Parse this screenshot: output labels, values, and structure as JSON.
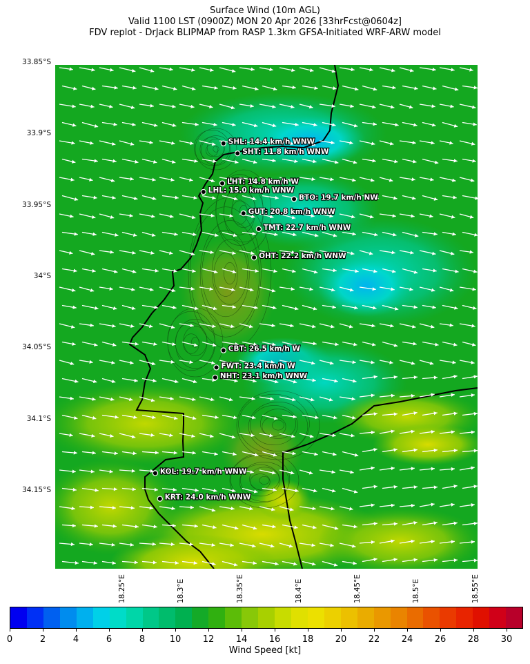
{
  "title": {
    "line1": "Surface Wind (10m AGL)",
    "line2": "Valid 1100 LST (0900Z) MON 20 Apr 2026 [33hrFcst@0604z]",
    "line3": "FDV replot - DrJack BLIPMAP from RASP 1.3km GFSA-Initiated WRF-ARW model"
  },
  "map": {
    "lat_range": [
      -34.205,
      -33.852
    ],
    "lon_range": [
      18.193,
      18.552
    ],
    "lat_ticks": [
      {
        "label": "33.85°S",
        "value": -33.85
      },
      {
        "label": "33.9°S",
        "value": -33.9
      },
      {
        "label": "33.95°S",
        "value": -33.95
      },
      {
        "label": "34°S",
        "value": -34.0
      },
      {
        "label": "34.05°S",
        "value": -34.05
      },
      {
        "label": "34.1°S",
        "value": -34.1
      },
      {
        "label": "34.15°S",
        "value": -34.15
      }
    ],
    "lon_ticks": [
      {
        "label": "18.25°E",
        "value": 18.25
      },
      {
        "label": "18.3°E",
        "value": 18.3
      },
      {
        "label": "18.35°E",
        "value": 18.35
      },
      {
        "label": "18.4°E",
        "value": 18.4
      },
      {
        "label": "18.45°E",
        "value": 18.45
      },
      {
        "label": "18.5°E",
        "value": 18.5
      },
      {
        "label": "18.55°E",
        "value": 18.55
      }
    ],
    "wind_arrow_color": "#ffffff",
    "coastline_color": "#000000",
    "stations": [
      {
        "code": "SHL",
        "label": "SHL: 14.4 km/h WNW",
        "lon": 18.336,
        "lat": -33.907
      },
      {
        "code": "SHT",
        "label": "SHT: 11.8 km/h WNW",
        "lon": 18.348,
        "lat": -33.914
      },
      {
        "code": "LHT",
        "label": "LHT: 14.8 km/h W",
        "lon": 18.335,
        "lat": -33.935
      },
      {
        "code": "LHL",
        "label": "LHL: 15.0 km/h WNW",
        "lon": 18.319,
        "lat": -33.941
      },
      {
        "code": "BTO",
        "label": "BTO: 19.7 km/h NW",
        "lon": 18.396,
        "lat": -33.946
      },
      {
        "code": "GUT",
        "label": "GUT: 20.8 km/h WNW",
        "lon": 18.353,
        "lat": -33.956
      },
      {
        "code": "TMT",
        "label": "TMT: 22.7 km/h WNW",
        "lon": 18.366,
        "lat": -33.967
      },
      {
        "code": "OHT",
        "label": "OHT: 22.2 km/h WNW",
        "lon": 18.362,
        "lat": -33.987
      },
      {
        "code": "CBT",
        "label": "CBT: 26.5 km/h W",
        "lon": 18.336,
        "lat": -34.052
      },
      {
        "code": "FWT",
        "label": "FWT: 23.4 km/h W",
        "lon": 18.33,
        "lat": -34.064
      },
      {
        "code": "NHT",
        "label": "NHT: 23.1 km/h WNW",
        "lon": 18.329,
        "lat": -34.071
      },
      {
        "code": "KOL",
        "label": "KOL: 19.7 km/h WNW",
        "lon": 18.278,
        "lat": -34.138
      },
      {
        "code": "KRT",
        "label": "KRT: 24.0 km/h WNW",
        "lon": 18.282,
        "lat": -34.156
      }
    ]
  },
  "colorbar": {
    "label": "Wind Speed [kt]",
    "min": 0,
    "max": 31,
    "ticks": [
      "0",
      "2",
      "4",
      "6",
      "8",
      "10",
      "12",
      "14",
      "16",
      "18",
      "20",
      "22",
      "24",
      "26",
      "28",
      "30"
    ],
    "colors": [
      "#0000f0",
      "#0030f5",
      "#0060f0",
      "#008cee",
      "#00b0ee",
      "#00d0e8",
      "#00dcc8",
      "#00d6a8",
      "#00c888",
      "#00bc6c",
      "#00b050",
      "#14aa28",
      "#30b010",
      "#5cbc08",
      "#88c808",
      "#a8d000",
      "#c8dc00",
      "#e0e000",
      "#ece000",
      "#ecd000",
      "#ecc000",
      "#eaac00",
      "#ea9800",
      "#ea8400",
      "#ea6c00",
      "#ea5200",
      "#ea3a00",
      "#e82400",
      "#e01000",
      "#d00018",
      "#b8002a"
    ]
  }
}
